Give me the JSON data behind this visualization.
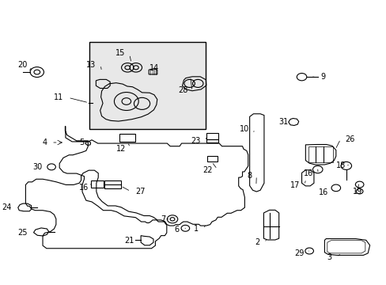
{
  "background_color": "#ffffff",
  "figure_width": 4.89,
  "figure_height": 3.6,
  "dpi": 100,
  "line_color": "#000000",
  "text_color": "#000000",
  "font_size": 7.0
}
